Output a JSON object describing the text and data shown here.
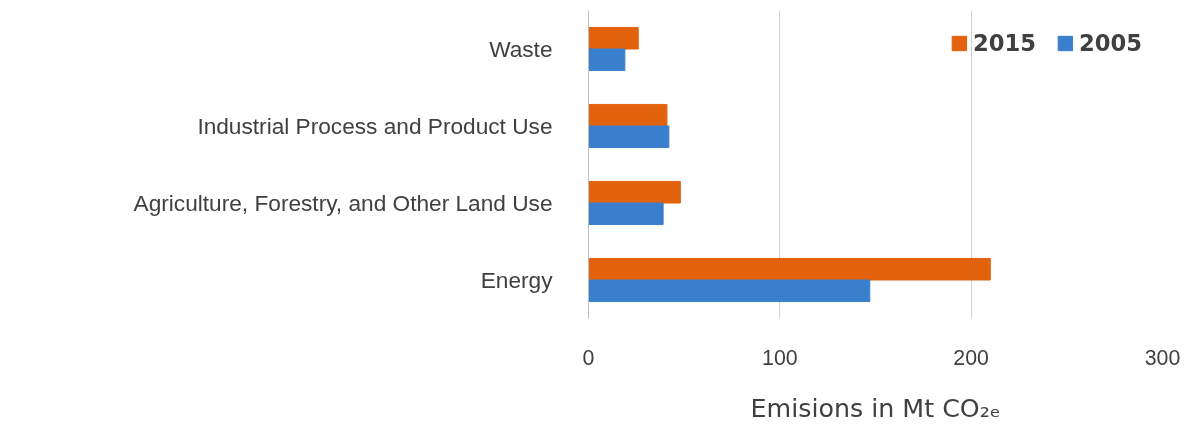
{
  "chart_data": {
    "type": "bar",
    "orientation": "horizontal",
    "xlabel": "Emisions in Mt CO₂ₑ",
    "categories": [
      "Waste",
      "Industrial Process and Product Use",
      "Agriculture, Forestry, and Other Land Use",
      "Energy"
    ],
    "series": [
      {
        "name": "2015",
        "color": "#e2620d",
        "values": [
          26,
          41,
          48,
          210
        ]
      },
      {
        "name": "2005",
        "color": "#3a7fcc",
        "values": [
          19,
          42,
          39,
          147
        ]
      }
    ],
    "xlim": [
      0,
      300
    ],
    "xticks": [
      0,
      100,
      200,
      300
    ],
    "grid": "x",
    "legend": "top right"
  }
}
